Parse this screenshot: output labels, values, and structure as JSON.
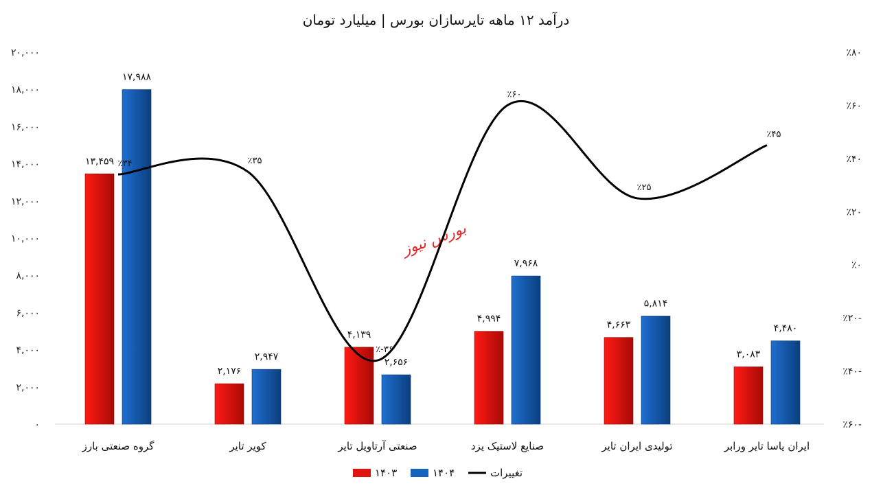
{
  "chart_data": {
    "type": "bar",
    "title": "درآمد ۱۲ ماهه تایرسازان بورس | میلیارد تومان",
    "categories": [
      "گروه صنعتی بارز",
      "کویر تایر",
      "صنعتی آرتاویل تایر",
      "صنایع لاستیک یزد",
      "تولیدی ایران تایر",
      "ایران یاسا تایر ورابر"
    ],
    "series": [
      {
        "name": "۱۴۰۳",
        "color": "#e0140f",
        "values": [
          13459,
          2176,
          4139,
          4994,
          4663,
          3083
        ],
        "labels": [
          "۱۳,۴۵۹",
          "۲,۱۷۶",
          "۴,۱۳۹",
          "۴,۹۹۴",
          "۴,۶۶۳",
          "۳,۰۸۳"
        ]
      },
      {
        "name": "۱۴۰۴",
        "color": "#1565c0",
        "values": [
          17988,
          2947,
          2656,
          7968,
          5814,
          4480
        ],
        "labels": [
          "۱۷,۹۸۸",
          "۲,۹۴۷",
          "۲,۶۵۶",
          "۷,۹۶۸",
          "۵,۸۱۴",
          "۴,۴۸۰"
        ]
      }
    ],
    "line_series": {
      "name": "تغییرات",
      "axis": "right",
      "values": [
        34,
        35,
        -36,
        60,
        25,
        45
      ],
      "labels": [
        "٪۳۴",
        "٪۳۵",
        "٪-۳۶",
        "٪۶۰",
        "٪۲۵",
        "٪۴۵"
      ]
    },
    "left_axis": {
      "ylim": [
        0,
        20000
      ],
      "ticks": [
        0,
        2000,
        4000,
        6000,
        8000,
        10000,
        12000,
        14000,
        16000,
        18000,
        20000
      ],
      "tick_labels": [
        "۰",
        "۲,۰۰۰",
        "۴,۰۰۰",
        "۶,۰۰۰",
        "۸,۰۰۰",
        "۱۰,۰۰۰",
        "۱۲,۰۰۰",
        "۱۴,۰۰۰",
        "۱۶,۰۰۰",
        "۱۸,۰۰۰",
        "۲۰,۰۰۰"
      ]
    },
    "right_axis": {
      "ylim": [
        -60,
        80
      ],
      "ticks": [
        -60,
        -40,
        -20,
        0,
        20,
        40,
        60,
        80
      ],
      "tick_labels": [
        "٪۶۰-",
        "٪۴۰-",
        "٪۲۰-",
        "٪۰",
        "٪۲۰",
        "٪۴۰",
        "٪۶۰",
        "٪۸۰"
      ]
    },
    "legend": {
      "placement": "bottom",
      "items": [
        "۱۴۰۳",
        "۱۴۰۴",
        "تغییرات"
      ]
    },
    "grid": false,
    "watermark": "بورس نیوز"
  }
}
